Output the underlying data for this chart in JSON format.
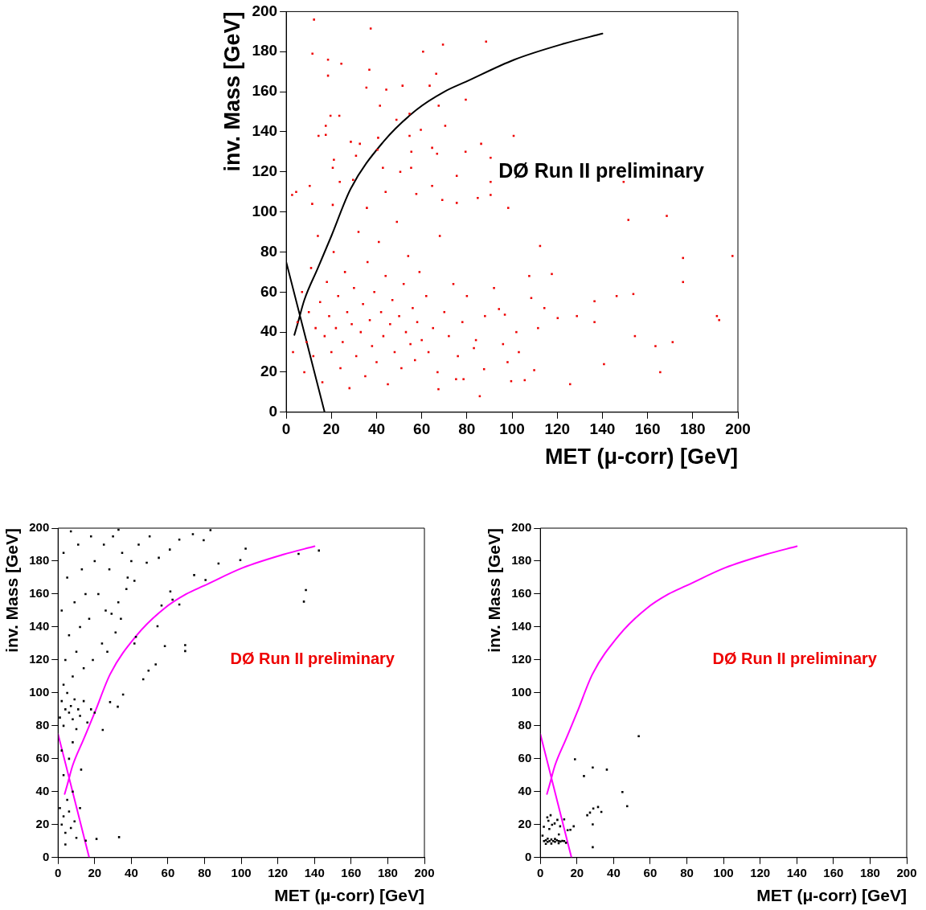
{
  "chart_data": [
    {
      "type": "scatter",
      "xlabel": "MET (μ-corr) [GeV]",
      "ylabel": "inv. Mass [GeV]",
      "annotations": [
        "DØ Run II preliminary"
      ],
      "xlim": [
        0,
        200
      ],
      "ylim": [
        0,
        200
      ],
      "xticks": [
        0,
        20,
        40,
        60,
        80,
        100,
        120,
        140,
        160,
        180,
        200
      ],
      "yticks": [
        0,
        20,
        40,
        60,
        80,
        100,
        120,
        140,
        160,
        180,
        200
      ],
      "grid": false,
      "legend": false,
      "series": [
        {
          "marker": "square",
          "color": "#ee0000",
          "x": [
            12.3,
            37.4,
            11.6,
            18.5,
            24.4,
            18.5,
            36.8,
            35.5,
            44.3,
            51.5,
            60.6,
            69.4,
            88.5,
            66.4,
            63.5,
            79.5,
            67.5,
            41.5,
            19.6,
            23.5,
            17.5,
            48.8,
            54.6,
            59.6,
            70.4,
            100.7,
            14.3,
            17.5,
            28.6,
            32.6,
            40.7,
            54.6,
            86.3,
            64.6,
            55.4,
            40.4,
            30.9,
            66.8,
            79.4,
            90.5,
            21.1,
            20.6,
            42.8,
            50.5,
            55.3,
            75.5,
            149.4,
            10.4,
            23.7,
            29.6,
            64.6,
            90.5,
            2.6,
            4.4,
            11.5,
            20.6,
            35.7,
            44,
            57.6,
            69.1,
            75.5,
            84.8,
            90.5,
            151.5,
            168.5,
            98.3,
            112.4,
            175.7,
            197.6,
            175.7,
            117.6,
            107.6,
            153.7,
            146.3,
            136.5,
            128.7,
            120.2,
            136.5,
            190.7,
            191.7,
            154.4,
            163.5,
            171.1,
            140.7,
            165.6,
            125.7,
            85.7,
            109.8,
            105.6,
            99.6,
            108.5,
            114.3,
            111.5,
            101.9,
            94.2,
            96.8,
            87.6,
            103,
            98,
            83.1,
            75.2,
            78.5,
            67.4,
            3,
            5,
            7,
            8,
            9,
            10,
            11,
            12,
            13,
            14,
            15,
            16,
            17,
            18,
            19,
            20,
            21,
            22,
            23,
            24,
            25,
            26,
            27,
            28,
            29,
            30,
            31,
            32,
            33,
            34,
            35,
            36,
            37,
            38,
            39,
            40,
            41,
            42,
            43,
            44,
            45,
            46,
            47,
            48,
            49,
            50,
            51,
            52,
            53,
            54,
            55,
            56,
            57,
            58,
            59,
            60,
            62,
            63,
            65,
            67,
            68,
            70,
            72,
            74,
            76,
            78,
            80,
            84,
            88,
            92,
            96
          ],
          "values": [
            196,
            191.5,
            179,
            176,
            174,
            168,
            171,
            162,
            161,
            163,
            180,
            183.5,
            185,
            169,
            163,
            156,
            153,
            153,
            148,
            148,
            143,
            146,
            149,
            141,
            143,
            138,
            138,
            138.5,
            135,
            134,
            137,
            138,
            134,
            132,
            130,
            131,
            128,
            129,
            130,
            127,
            126,
            122,
            122,
            120,
            122,
            118,
            115,
            113,
            115,
            116,
            113,
            115,
            108.5,
            110,
            104,
            103.5,
            102,
            110,
            109,
            106,
            104.5,
            107,
            108.5,
            96,
            98,
            102,
            83,
            77,
            78,
            65,
            69,
            68,
            59,
            58,
            55.4,
            48,
            47,
            45,
            48,
            46,
            38,
            33,
            35,
            24,
            20,
            14,
            8,
            21,
            16,
            15.5,
            57,
            52,
            42,
            40,
            51.5,
            48.7,
            21.5,
            30,
            25,
            32,
            16.5,
            16.5,
            11.5,
            30,
            45,
            60,
            20,
            35,
            50,
            72,
            28,
            42,
            88,
            55,
            15,
            38,
            65,
            48,
            30,
            80,
            42,
            58,
            22,
            35,
            70,
            50,
            12,
            44,
            62,
            28,
            90,
            40,
            54,
            18,
            75,
            46,
            33,
            60,
            25,
            85,
            50,
            38,
            68,
            14,
            44,
            56,
            30,
            95,
            48,
            22,
            64,
            40,
            78,
            34,
            52,
            26,
            45,
            70,
            36,
            58,
            30,
            42,
            20,
            88,
            50,
            38,
            64,
            28,
            45,
            58,
            36,
            48,
            62,
            34
          ]
        },
        {
          "type": "line",
          "marker": "none",
          "color": "#000000",
          "x": [
            3.6,
            5,
            8,
            13.9,
            20,
            28.5,
            43,
            57.7,
            70,
            79.6,
            101,
            123,
            140
          ],
          "values": [
            38.6,
            44,
            56,
            71.7,
            88,
            111.5,
            135,
            151,
            160,
            165,
            176,
            184,
            189
          ]
        },
        {
          "type": "line",
          "marker": "none",
          "color": "#000000",
          "x": [
            0,
            17
          ],
          "values": [
            75,
            0
          ]
        }
      ]
    },
    {
      "type": "scatter",
      "xlabel": "MET (μ-corr) [GeV]",
      "ylabel": "inv. Mass [GeV]",
      "annotations": [
        "DØ Run II preliminary"
      ],
      "xlim": [
        0,
        200
      ],
      "ylim": [
        0,
        200
      ],
      "xticks": [
        0,
        20,
        40,
        60,
        80,
        100,
        120,
        140,
        160,
        180,
        200
      ],
      "yticks": [
        0,
        20,
        40,
        60,
        80,
        100,
        120,
        140,
        160,
        180,
        200
      ],
      "grid": false,
      "legend": false,
      "series": [
        {
          "marker": "square",
          "color": "#000000",
          "x": [
            131.3,
            142.4,
            135.3,
            134.2,
            102.4,
            99.5,
            87.6,
            80.5,
            74.3,
            69.4,
            69.4,
            58.3,
            53.3,
            49.4,
            46.5,
            35.5,
            32.6,
            24.4,
            28.4,
            33.3,
            21,
            15.1,
            12.6,
            66.2,
            62.5,
            61.3,
            56.5,
            54.3,
            41.7,
            42.5,
            79.5,
            83.2,
            73.6,
            66.2,
            61,
            55,
            48.4,
            41.7,
            37.3,
            32.9,
            34.3,
            31.4,
            26.9,
            29.2,
            1,
            2,
            3,
            4,
            5,
            6,
            7,
            8,
            9,
            10,
            11,
            12,
            14,
            16,
            18,
            20,
            3,
            8,
            4,
            10,
            6,
            12,
            2,
            9,
            15,
            5,
            13,
            20,
            3,
            11,
            18,
            7,
            25,
            28,
            22,
            17,
            24,
            26,
            30,
            35,
            38,
            14,
            19,
            1,
            2,
            3,
            4,
            5,
            6,
            7,
            8,
            9,
            10,
            3,
            6,
            2,
            8,
            4,
            12,
            44,
            50,
            40,
            33
          ],
          "values": [
            184.4,
            186.4,
            162.4,
            155.4,
            187.6,
            180.6,
            178.5,
            168.5,
            171.5,
            129,
            125.4,
            128.4,
            117.3,
            113.5,
            108.2,
            99,
            91.6,
            77.5,
            94.4,
            12.4,
            11.3,
            10.3,
            53.4,
            153.6,
            156.6,
            161.6,
            153,
            140.5,
            130,
            134,
            192.7,
            198.8,
            196.3,
            193,
            187,
            182,
            179,
            168,
            163,
            155,
            145,
            136.7,
            125,
            148,
            85,
            95,
            80,
            90,
            100,
            88,
            92,
            84,
            96,
            78,
            90,
            86,
            95,
            82,
            90,
            88,
            105,
            110,
            120,
            125,
            135,
            140,
            150,
            155,
            160,
            170,
            175,
            180,
            185,
            190,
            195,
            198,
            190,
            175,
            160,
            145,
            130,
            150,
            195,
            185,
            170,
            115,
            120,
            30,
            20,
            25,
            15,
            35,
            28,
            18,
            40,
            22,
            12,
            50,
            60,
            65,
            70,
            8,
            30,
            190,
            195,
            180,
            199
          ]
        },
        {
          "type": "line",
          "marker": "none",
          "color": "#ff00ff",
          "x": [
            3.6,
            5,
            8,
            13.9,
            20,
            28.5,
            43,
            57.7,
            70,
            79.6,
            101,
            123,
            140
          ],
          "values": [
            38.6,
            44,
            56,
            71.7,
            88,
            111.5,
            135,
            151,
            160,
            165,
            176,
            184,
            189
          ]
        },
        {
          "type": "line",
          "marker": "none",
          "color": "#ff00ff",
          "x": [
            0,
            17
          ],
          "values": [
            75,
            0
          ]
        }
      ]
    },
    {
      "type": "scatter",
      "xlabel": "MET (μ-corr) [GeV]",
      "ylabel": "inv. Mass [GeV]",
      "annotations": [
        "DØ Run II preliminary"
      ],
      "xlim": [
        0,
        200
      ],
      "ylim": [
        0,
        200
      ],
      "xticks": [
        0,
        20,
        40,
        60,
        80,
        100,
        120,
        140,
        160,
        180,
        200
      ],
      "yticks": [
        0,
        20,
        40,
        60,
        80,
        100,
        120,
        140,
        160,
        180,
        200
      ],
      "grid": false,
      "legend": false,
      "series": [
        {
          "marker": "square",
          "color": "#000000",
          "x": [
            53.7,
            18.9,
            28.6,
            36.3,
            23.8,
            44.8,
            47.4,
            31.5,
            28.9,
            27.1,
            33.3,
            25.6,
            28.6,
            28.6,
            18.2,
            16.4,
            14.9,
            13,
            10.8,
            7.8,
            5.6,
            3.8,
            4.4,
            9.3,
            6.4,
            1.9,
            4.9,
            10.1,
            1.2,
            2,
            3,
            4,
            5,
            6,
            7,
            8,
            9,
            10,
            11,
            12,
            13,
            4,
            8,
            6,
            10,
            14,
            3
          ],
          "values": [
            73.7,
            59.7,
            54.7,
            53.4,
            49.5,
            39.8,
            31.2,
            30.7,
            29.8,
            27.3,
            27.7,
            25.7,
            20.2,
            6.3,
            19,
            16.9,
            16.6,
            23.2,
            19,
            20.7,
            25.7,
            24.4,
            22.4,
            22.9,
            19.9,
            18.7,
            17.4,
            14.1,
            13.3,
            10,
            10.5,
            9.5,
            10,
            11,
            10,
            9.5,
            10.5,
            10,
            9.8,
            10.2,
            10,
            11.5,
            11.3,
            8.5,
            8.7,
            9,
            8.3
          ]
        },
        {
          "type": "line",
          "marker": "none",
          "color": "#ff00ff",
          "x": [
            3.6,
            5,
            8,
            13.9,
            20,
            28.5,
            43,
            57.7,
            70,
            79.6,
            101,
            123,
            140
          ],
          "values": [
            38.6,
            44,
            56,
            71.7,
            88,
            111.5,
            135,
            151,
            160,
            165,
            176,
            184,
            189
          ]
        },
        {
          "type": "line",
          "marker": "none",
          "color": "#ff00ff",
          "x": [
            0,
            17
          ],
          "values": [
            75,
            0
          ]
        }
      ]
    }
  ]
}
